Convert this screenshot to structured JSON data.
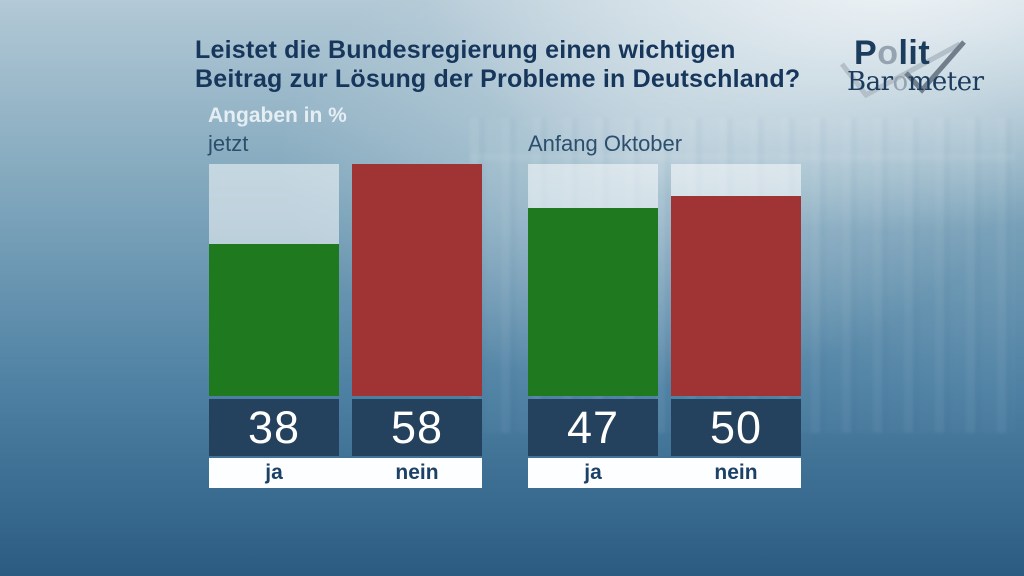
{
  "header": {
    "title_line1": "Leistet die Bundesregierung einen wichtigen",
    "title_line2": "Beitrag zur Lösung der Probleme in Deutschland?",
    "units_label": "Angaben in %"
  },
  "logo": {
    "polit_p": "P",
    "polit_o": "o",
    "polit_rest": "lit",
    "baro_start": "Bar",
    "baro_o": "o",
    "baro_rest": "meter",
    "navy": "#1c3c5e",
    "gray": "#95a4b0",
    "check_light": "#b3bfc9",
    "check_dark": "#717f8c"
  },
  "chart_data": {
    "type": "bar",
    "title": "Leistet die Bundesregierung einen wichtigen Beitrag zur Lösung der Probleme in Deutschland?",
    "units": "Angaben in %",
    "xlabel": "",
    "ylabel": "",
    "ylim": [
      0,
      58
    ],
    "grid": false,
    "legend_position": "none",
    "colors": {
      "ja": "#1f7a1f",
      "nein": "#a03434"
    },
    "value_box_color": "#24425e",
    "groups": [
      {
        "label": "jetzt",
        "categories": [
          "ja",
          "nein"
        ],
        "values": [
          38,
          58
        ]
      },
      {
        "label": "Anfang Oktober",
        "categories": [
          "ja",
          "nein"
        ],
        "values": [
          47,
          50
        ]
      }
    ]
  }
}
